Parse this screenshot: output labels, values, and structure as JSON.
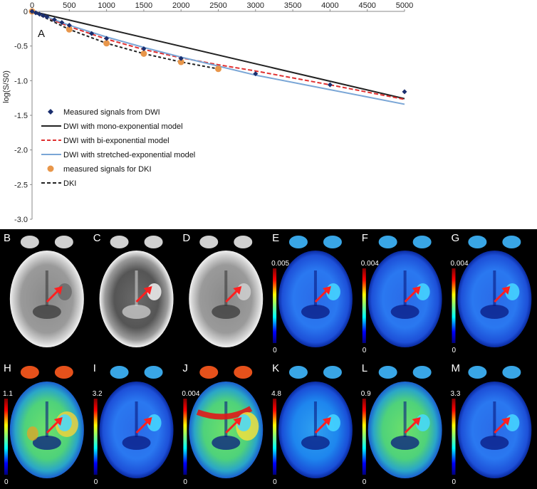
{
  "chart_data": {
    "type": "line",
    "panel_label": "A",
    "xlabel": "",
    "ylabel": "log(S/S0)",
    "xlim": [
      0,
      5000
    ],
    "ylim": [
      -3.0,
      0
    ],
    "x_ticks": [
      0,
      500,
      1000,
      1500,
      2000,
      2500,
      3000,
      3500,
      4000,
      4500,
      5000
    ],
    "x_tick_labels": [
      "0",
      "500",
      "1000",
      "1500",
      "2000",
      "2500",
      "3000",
      "3500",
      "4000",
      "4500",
      "5000"
    ],
    "y_ticks": [
      0,
      -0.5,
      -1.0,
      -1.5,
      -2.0,
      -2.5,
      -3.0
    ],
    "y_tick_labels": [
      "0",
      "-0.5",
      "-1.0",
      "-1.5",
      "-2.0",
      "-2.5",
      "-3.0"
    ],
    "x_axis_position": "top",
    "grid": false,
    "legend_position": "bottom-left",
    "series": [
      {
        "name": "Measured signals from DWI",
        "style": "diamond-markers",
        "color": "#1a2e6e",
        "x": [
          0,
          50,
          100,
          150,
          200,
          300,
          400,
          500,
          800,
          1000,
          1500,
          2000,
          3000,
          4000,
          5000
        ],
        "y": [
          0,
          -0.02,
          -0.04,
          -0.06,
          -0.08,
          -0.12,
          -0.16,
          -0.2,
          -0.32,
          -0.39,
          -0.54,
          -0.68,
          -0.9,
          -1.06,
          -1.16
        ]
      },
      {
        "name": "DWI with mono-exponential model",
        "style": "solid",
        "color": "#222222",
        "x": [
          0,
          5000
        ],
        "y": [
          0,
          -1.26
        ]
      },
      {
        "name": "DWI with bi-exponential model",
        "style": "dashed",
        "color": "#e03030",
        "x": [
          0,
          500,
          1000,
          1500,
          2000,
          2500,
          3000,
          4000,
          5000
        ],
        "y": [
          0,
          -0.22,
          -0.4,
          -0.55,
          -0.67,
          -0.77,
          -0.86,
          -1.06,
          -1.27
        ]
      },
      {
        "name": "DWI with stretched-exponential model",
        "style": "solid",
        "color": "#7aa6d6",
        "x": [
          0,
          500,
          1000,
          1500,
          2000,
          2500,
          3000,
          4000,
          5000
        ],
        "y": [
          0,
          -0.2,
          -0.37,
          -0.52,
          -0.66,
          -0.79,
          -0.92,
          -1.13,
          -1.34
        ]
      },
      {
        "name": "measured signals for DKI",
        "style": "circle-markers",
        "color": "#e8964a",
        "x": [
          0,
          500,
          1000,
          1500,
          2000,
          2500
        ],
        "y": [
          0,
          -0.26,
          -0.46,
          -0.61,
          -0.73,
          -0.83
        ]
      },
      {
        "name": "DKI",
        "style": "dashed",
        "color": "#222222",
        "x": [
          0,
          500,
          1000,
          1500,
          2000,
          2500
        ],
        "y": [
          0,
          -0.26,
          -0.46,
          -0.61,
          -0.73,
          -0.83
        ]
      }
    ]
  },
  "image_panels": {
    "row1": [
      {
        "letter": "B",
        "scale_max": "",
        "scale_min": ""
      },
      {
        "letter": "C",
        "scale_max": "",
        "scale_min": ""
      },
      {
        "letter": "D",
        "scale_max": "",
        "scale_min": ""
      },
      {
        "letter": "E",
        "scale_max": "0.005",
        "scale_min": "0"
      },
      {
        "letter": "F",
        "scale_max": "0.004",
        "scale_min": "0"
      },
      {
        "letter": "G",
        "scale_max": "0.004",
        "scale_min": "0"
      }
    ],
    "row2": [
      {
        "letter": "H",
        "scale_max": "1.1",
        "scale_min": "0"
      },
      {
        "letter": "I",
        "scale_max": "3.2",
        "scale_min": "0"
      },
      {
        "letter": "J",
        "scale_max": "0.004",
        "scale_min": "0"
      },
      {
        "letter": "K",
        "scale_max": "4.8",
        "scale_min": "0"
      },
      {
        "letter": "L",
        "scale_max": "0.9",
        "scale_min": "0"
      },
      {
        "letter": "M",
        "scale_max": "3.3",
        "scale_min": "0"
      }
    ]
  }
}
